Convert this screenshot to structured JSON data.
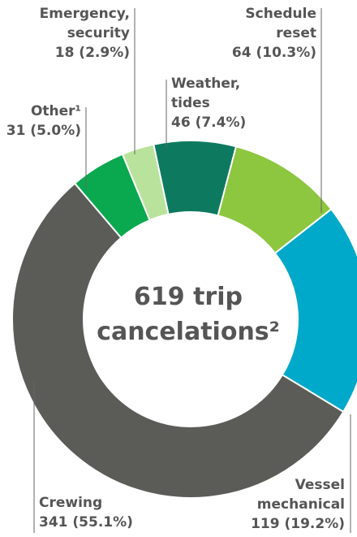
{
  "chart_data": {
    "type": "donut",
    "center_text": [
      "619 trip",
      "cancelations²"
    ],
    "categories": [
      [
        "Weather,",
        "tides"
      ],
      [
        "Schedule",
        "reset"
      ],
      [
        "Vessel",
        "mechanical"
      ],
      [
        "Crewing"
      ],
      [
        "Other¹"
      ],
      [
        "Emergency,",
        "security"
      ]
    ],
    "values": [
      46,
      64,
      119,
      341,
      31,
      18
    ],
    "value_labels": [
      "46 (7.4%)",
      "64 (10.3%)",
      "119 (19.2%)",
      "341 (55.1%)",
      "31 (5.0%)",
      "18 (2.9%)"
    ],
    "colors": [
      "#0d7a5f",
      "#8dc63f",
      "#00a9c9",
      "#5b5b58",
      "#0aa84f",
      "#b9e39c"
    ]
  }
}
